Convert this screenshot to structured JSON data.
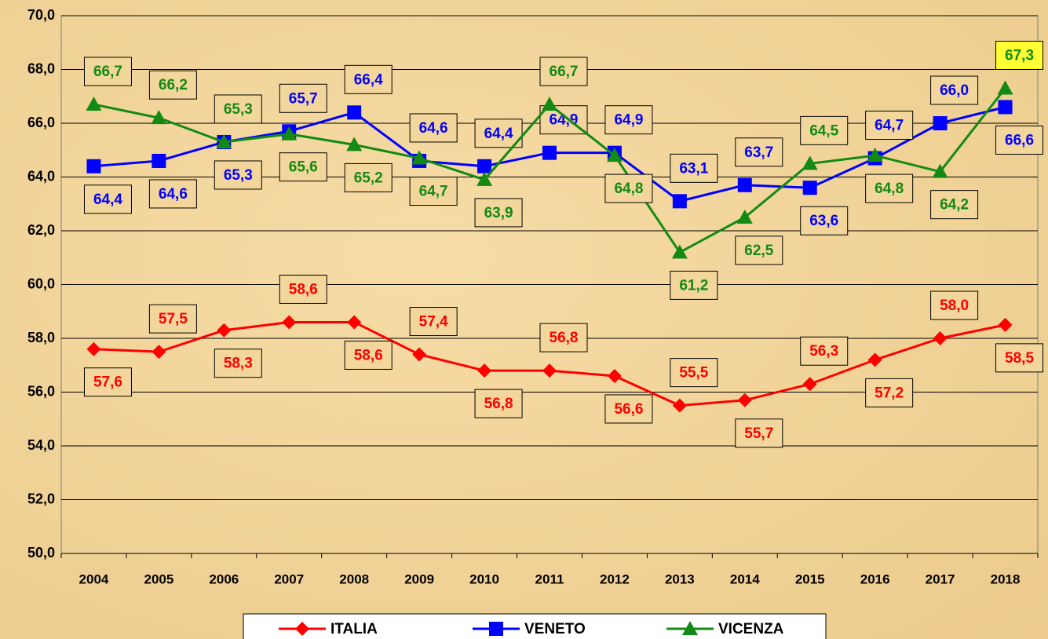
{
  "chart_data": {
    "type": "line",
    "categories": [
      "2004",
      "2005",
      "2006",
      "2007",
      "2008",
      "2009",
      "2010",
      "2011",
      "2012",
      "2013",
      "2014",
      "2015",
      "2016",
      "2017",
      "2018"
    ],
    "series": [
      {
        "name": "ITALIA",
        "color": "#ff0000",
        "marker": "diamond",
        "values": [
          57.6,
          57.5,
          58.3,
          58.6,
          58.6,
          57.4,
          56.8,
          56.8,
          56.6,
          55.5,
          55.7,
          56.3,
          57.2,
          58.0,
          58.5
        ],
        "value_labels": [
          "57,6",
          "57,5",
          "58,3",
          "58,6",
          "58,6",
          "57,4",
          "56,8",
          "56,8",
          "56,6",
          "55,5",
          "55,7",
          "56,3",
          "57,2",
          "58,0",
          "58,5"
        ]
      },
      {
        "name": "VENETO",
        "color": "#0000ff",
        "marker": "square",
        "values": [
          64.4,
          64.6,
          65.3,
          65.7,
          66.4,
          64.6,
          64.4,
          64.9,
          64.9,
          63.1,
          63.7,
          63.6,
          64.7,
          66.0,
          66.6
        ],
        "value_labels": [
          "64,4",
          "64,6",
          "65,3",
          "65,7",
          "66,4",
          "64,6",
          "64,4",
          "64,9",
          "64,9",
          "63,1",
          "63,7",
          "63,6",
          "64,7",
          "66,0",
          "66,6"
        ]
      },
      {
        "name": "VICENZA",
        "color": "#138a13",
        "marker": "triangle",
        "values": [
          66.7,
          66.2,
          65.3,
          65.6,
          65.2,
          64.7,
          63.9,
          66.7,
          64.8,
          61.2,
          62.5,
          64.5,
          64.8,
          64.2,
          67.3
        ],
        "value_labels": [
          "66,7",
          "66,2",
          "65,3",
          "65,6",
          "65,2",
          "64,7",
          "63,9",
          "66,7",
          "64,8",
          "61,2",
          "62,5",
          "64,5",
          "64,8",
          "64,2",
          "67,3"
        ]
      }
    ],
    "ylim": [
      50,
      70
    ],
    "yticks": [
      {
        "value": 50,
        "label": "50,0"
      },
      {
        "value": 52,
        "label": "52,0"
      },
      {
        "value": 54,
        "label": "54,0"
      },
      {
        "value": 56,
        "label": "56,0"
      },
      {
        "value": 58,
        "label": "58,0"
      },
      {
        "value": 60,
        "label": "60,0"
      },
      {
        "value": 62,
        "label": "62,0"
      },
      {
        "value": 64,
        "label": "64,0"
      },
      {
        "value": 66,
        "label": "66,0"
      },
      {
        "value": 68,
        "label": "68,0"
      },
      {
        "value": 70,
        "label": "70,0"
      }
    ],
    "grid": true,
    "legend": "bottom"
  }
}
